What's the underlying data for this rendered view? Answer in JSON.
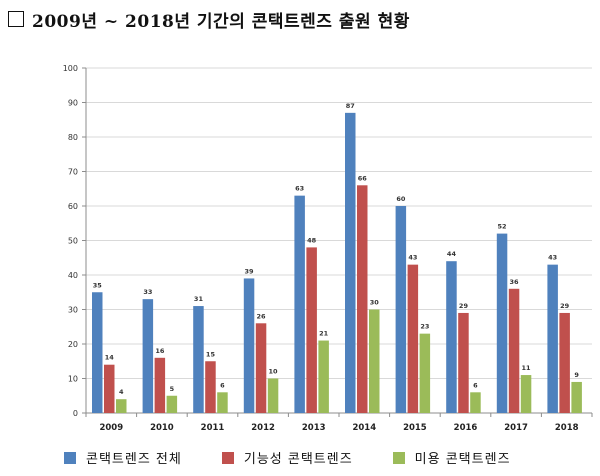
{
  "title": "2009년 ~ 2018년 기간의 콘택트렌즈 출원 현황",
  "colors": {
    "series0": "#4f81bd",
    "series1": "#c0504d",
    "series2": "#9bbb59",
    "grid": "#d9d9d9",
    "axis": "#8c8c8c"
  },
  "chart_data": {
    "type": "bar",
    "categories": [
      "2009",
      "2010",
      "2011",
      "2012",
      "2013",
      "2014",
      "2015",
      "2016",
      "2017",
      "2018"
    ],
    "series": [
      {
        "name": "콘택트렌즈 전체",
        "values": [
          35,
          33,
          31,
          39,
          63,
          87,
          60,
          44,
          52,
          43
        ]
      },
      {
        "name": "기능성 콘택트렌즈",
        "values": [
          14,
          16,
          15,
          26,
          48,
          66,
          43,
          29,
          36,
          29
        ]
      },
      {
        "name": "미용 콘택트렌즈",
        "values": [
          4,
          5,
          6,
          10,
          21,
          30,
          23,
          6,
          11,
          9
        ]
      }
    ],
    "ylim": [
      0,
      100
    ],
    "yticks": [
      0,
      10,
      20,
      30,
      40,
      50,
      60,
      70,
      80,
      90,
      100
    ],
    "grid": true,
    "legend": "bottom",
    "xlabel": "",
    "ylabel": ""
  }
}
